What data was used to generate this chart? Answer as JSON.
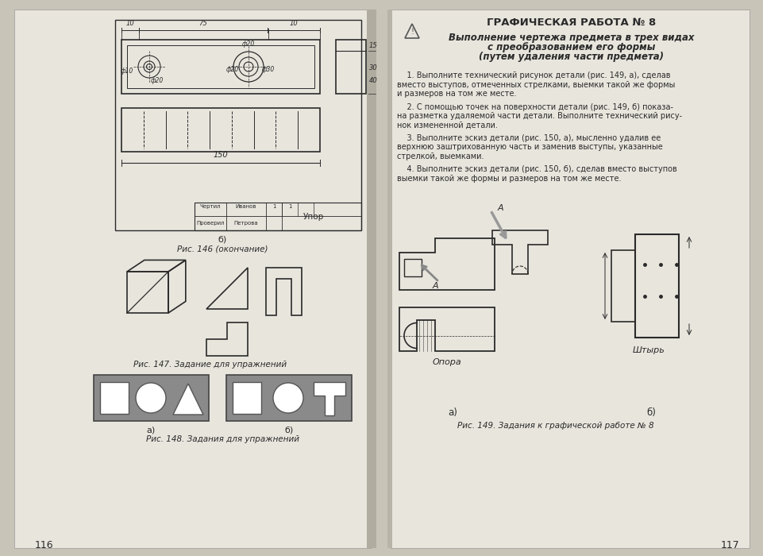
{
  "page_bg": "#c8c4b8",
  "left_page_num": "116",
  "right_page_num": "117",
  "paper_color": "#e8e5dd",
  "line_color": "#2a2a2a",
  "dark_gray": "#555555",
  "medium_gray": "#7a7a7a",
  "shape_gray": "#8a8a8a",
  "title_right": "ГРАФИЧЕСКАЯ РАБОТА № 8",
  "subtitle_line1": "Выполнение чертежа предмета в трех видах",
  "subtitle_line2": "с преобразованием его формы",
  "subtitle_line3": "(путем удаления части предмета)",
  "body_para1_l1": "    1. Выполните технический рисунок детали (рис. 149, а), сделав",
  "body_para1_l2": "вместо выступов, отмеченных стрелками, выемки такой же формы",
  "body_para1_l3": "и размеров на том же месте.",
  "body_para2_l1": "    2. С помощью точек на поверхности детали (рис. 149, б) показа-",
  "body_para2_l2": "на разметка удаляемой части детали. Выполните технический рису-",
  "body_para2_l3": "нок измененной детали.",
  "body_para3_l1": "    3. Выполните эскиз детали (рис. 150, а), мысленно удалив ее",
  "body_para3_l2": "верхнюю заштрихованную часть и заменив выступы, указанные",
  "body_para3_l3": "стрелкой, выемками.",
  "body_para4_l1": "    4. Выполните эскиз детали (рис. 150, б), сделав вместо выступов",
  "body_para4_l2": "выемки такой же формы и размеров на том же месте.",
  "fig146_caption": "Рис. 146 (окончание)",
  "fig147_caption": "Рис. 147. Задание для упражнений",
  "fig148_caption": "Рис. 148. Задания для упражнений",
  "fig149_caption": "Рис. 149. Задания к графической работе № 8"
}
